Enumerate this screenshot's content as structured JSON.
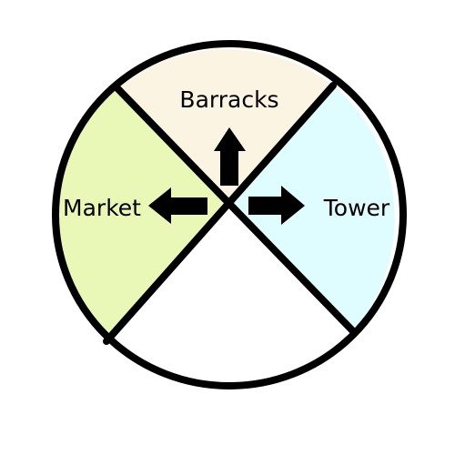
{
  "radial_menu": {
    "options": {
      "top": {
        "label": "Barracks",
        "fill": "#fbf4e2",
        "arrow_icon": "arrow-up-icon"
      },
      "left": {
        "label": "Market",
        "fill": "#e9f8b6",
        "arrow_icon": "arrow-left-icon"
      },
      "right": {
        "label": "Tower",
        "fill": "#dffcff",
        "arrow_icon": "arrow-right-icon"
      },
      "bottom": {
        "label": "",
        "fill": "#ffffff"
      }
    },
    "outline_color": "#000000"
  }
}
